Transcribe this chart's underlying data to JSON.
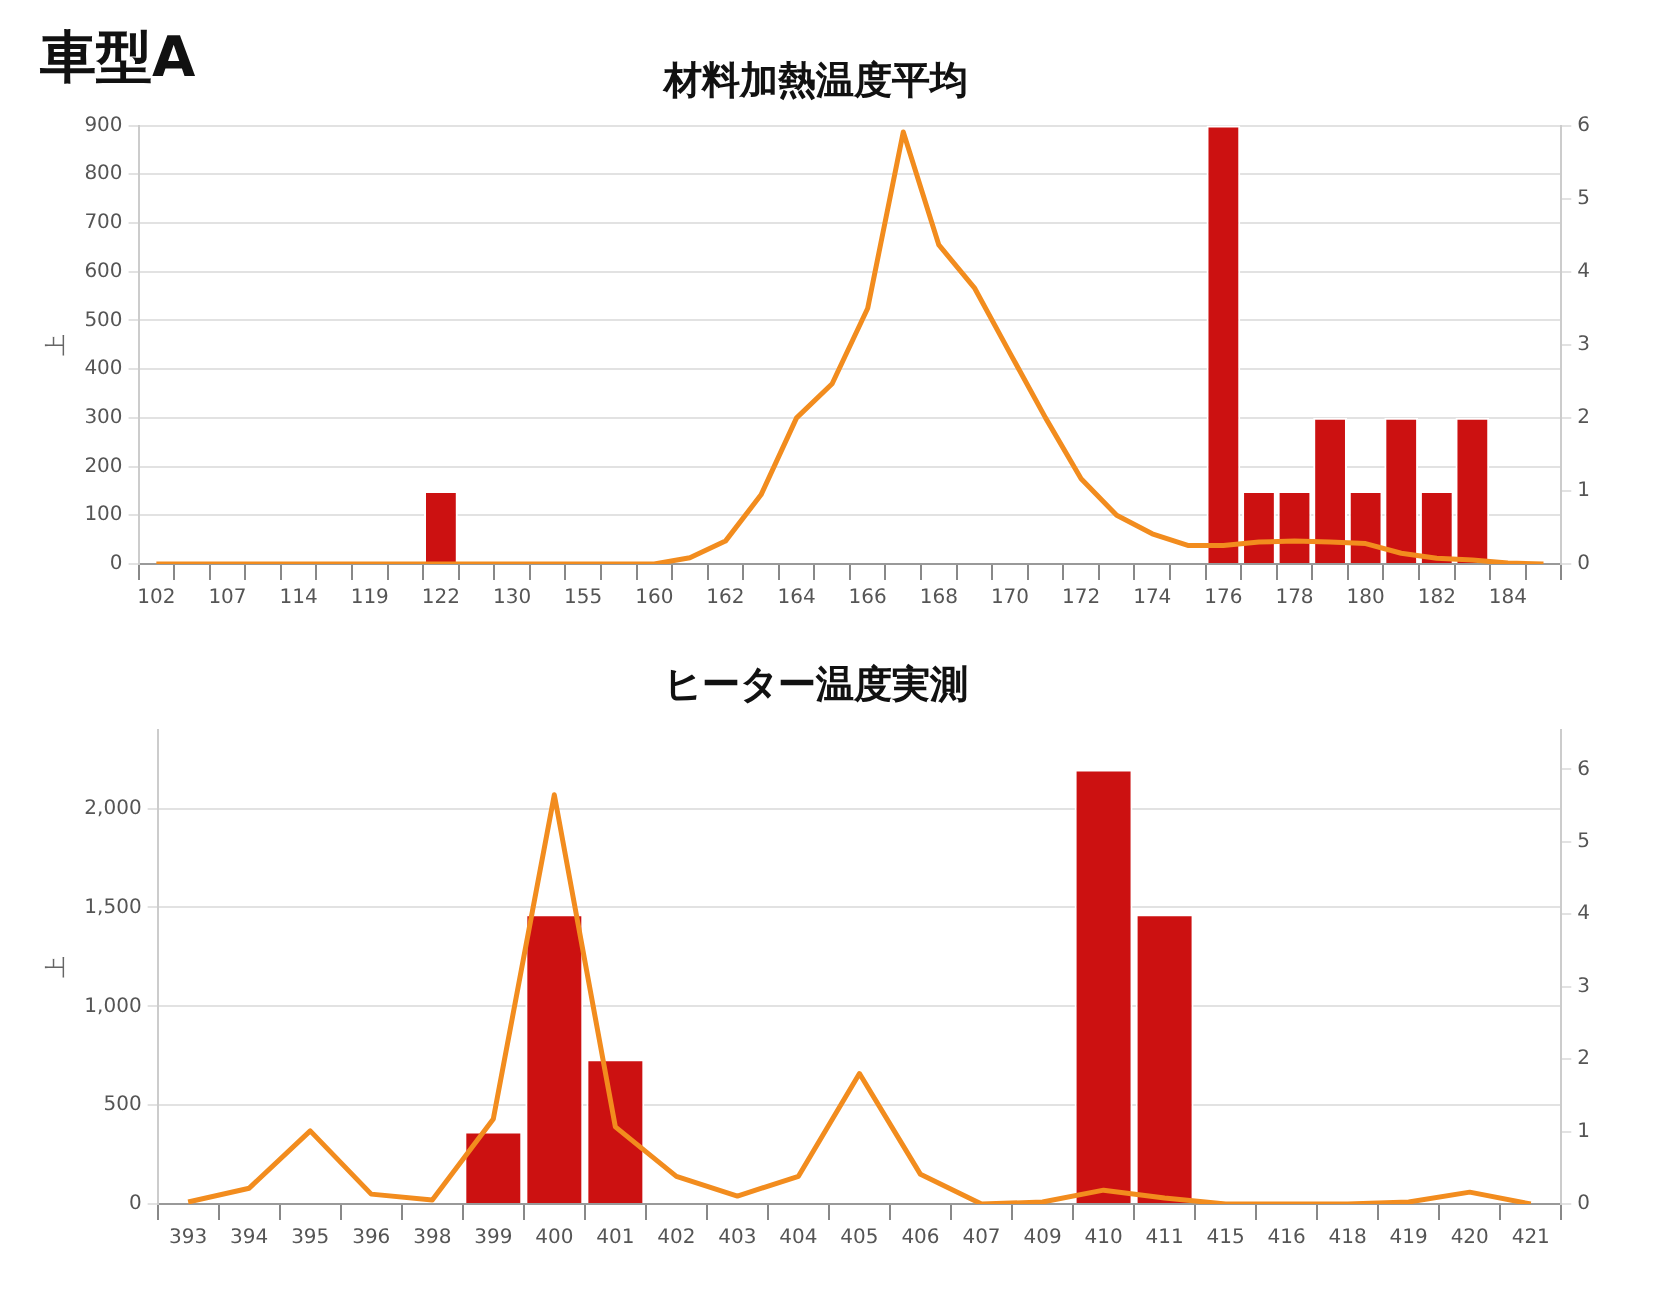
{
  "chart_data": [
    {
      "type": "bar",
      "title": "材料加熱温度平均",
      "annotations": [
        "車型A"
      ],
      "ylabel": "上",
      "categories": [
        "102",
        null,
        "107",
        null,
        "114",
        null,
        "119",
        null,
        "122",
        null,
        "130",
        null,
        "155",
        null,
        "160",
        null,
        "162",
        null,
        "164",
        null,
        "166",
        null,
        "168",
        null,
        "170",
        null,
        "172",
        null,
        "174",
        null,
        "176",
        null,
        "178",
        null,
        "180",
        null,
        "182",
        null,
        "184",
        null
      ],
      "series": [
        {
          "axis": "y2",
          "color": "#cc1111",
          "values": [
            null,
            null,
            null,
            null,
            null,
            null,
            null,
            null,
            1,
            null,
            null,
            null,
            null,
            null,
            null,
            null,
            null,
            null,
            null,
            null,
            null,
            null,
            null,
            null,
            null,
            null,
            null,
            null,
            null,
            null,
            6,
            1,
            1,
            2,
            1,
            2,
            1,
            2,
            null,
            null
          ]
        },
        {
          "type": "line",
          "color": "#f28c1e",
          "values": [
            0,
            0,
            0,
            0,
            0,
            0,
            0,
            0,
            0,
            0,
            0,
            0,
            0,
            0,
            0,
            13,
            47,
            142,
            300,
            370,
            525,
            887,
            655,
            567,
            433,
            300,
            175,
            100,
            62,
            38,
            38,
            45,
            47,
            45,
            42,
            22,
            12,
            8,
            2,
            0
          ]
        }
      ],
      "ylim": [
        0,
        900
      ],
      "yticks": [
        0,
        100,
        200,
        300,
        400,
        500,
        600,
        700,
        800,
        900
      ],
      "y2lim": [
        0,
        6
      ],
      "y2ticks": [
        0,
        1,
        2,
        3,
        4,
        5,
        6
      ],
      "grid": "y"
    },
    {
      "type": "bar",
      "title": "ヒーター温度実測",
      "ylabel": "上",
      "categories": [
        "393",
        "394",
        "395",
        "396",
        "398",
        "399",
        "400",
        "401",
        "402",
        "403",
        "404",
        "405",
        "406",
        "407",
        "409",
        "410",
        "411",
        "415",
        "416",
        "418",
        "419",
        "420",
        "421"
      ],
      "series": [
        {
          "axis": "y2",
          "color": "#cc1111",
          "values": [
            null,
            null,
            null,
            null,
            null,
            1,
            4,
            2,
            null,
            null,
            null,
            null,
            null,
            null,
            null,
            6,
            4,
            null,
            null,
            null,
            null,
            null,
            null
          ]
        },
        {
          "type": "line",
          "color": "#f28c1e",
          "values": [
            10,
            80,
            370,
            50,
            20,
            430,
            2070,
            390,
            140,
            40,
            140,
            660,
            150,
            0,
            10,
            70,
            30,
            0,
            0,
            0,
            10,
            60,
            0
          ]
        }
      ],
      "ylim": [
        0,
        2400
      ],
      "yticks": [
        0,
        {
          "value": 500,
          "label": "500"
        },
        {
          "value": 1000,
          "label": "1,000"
        },
        {
          "value": 1500,
          "label": "1,500"
        },
        {
          "value": 2000,
          "label": "2,000"
        }
      ],
      "y2lim": [
        0,
        6.55
      ],
      "y2ticks": [
        0,
        1,
        2,
        3,
        4,
        5,
        6
      ],
      "grid": "y"
    }
  ]
}
